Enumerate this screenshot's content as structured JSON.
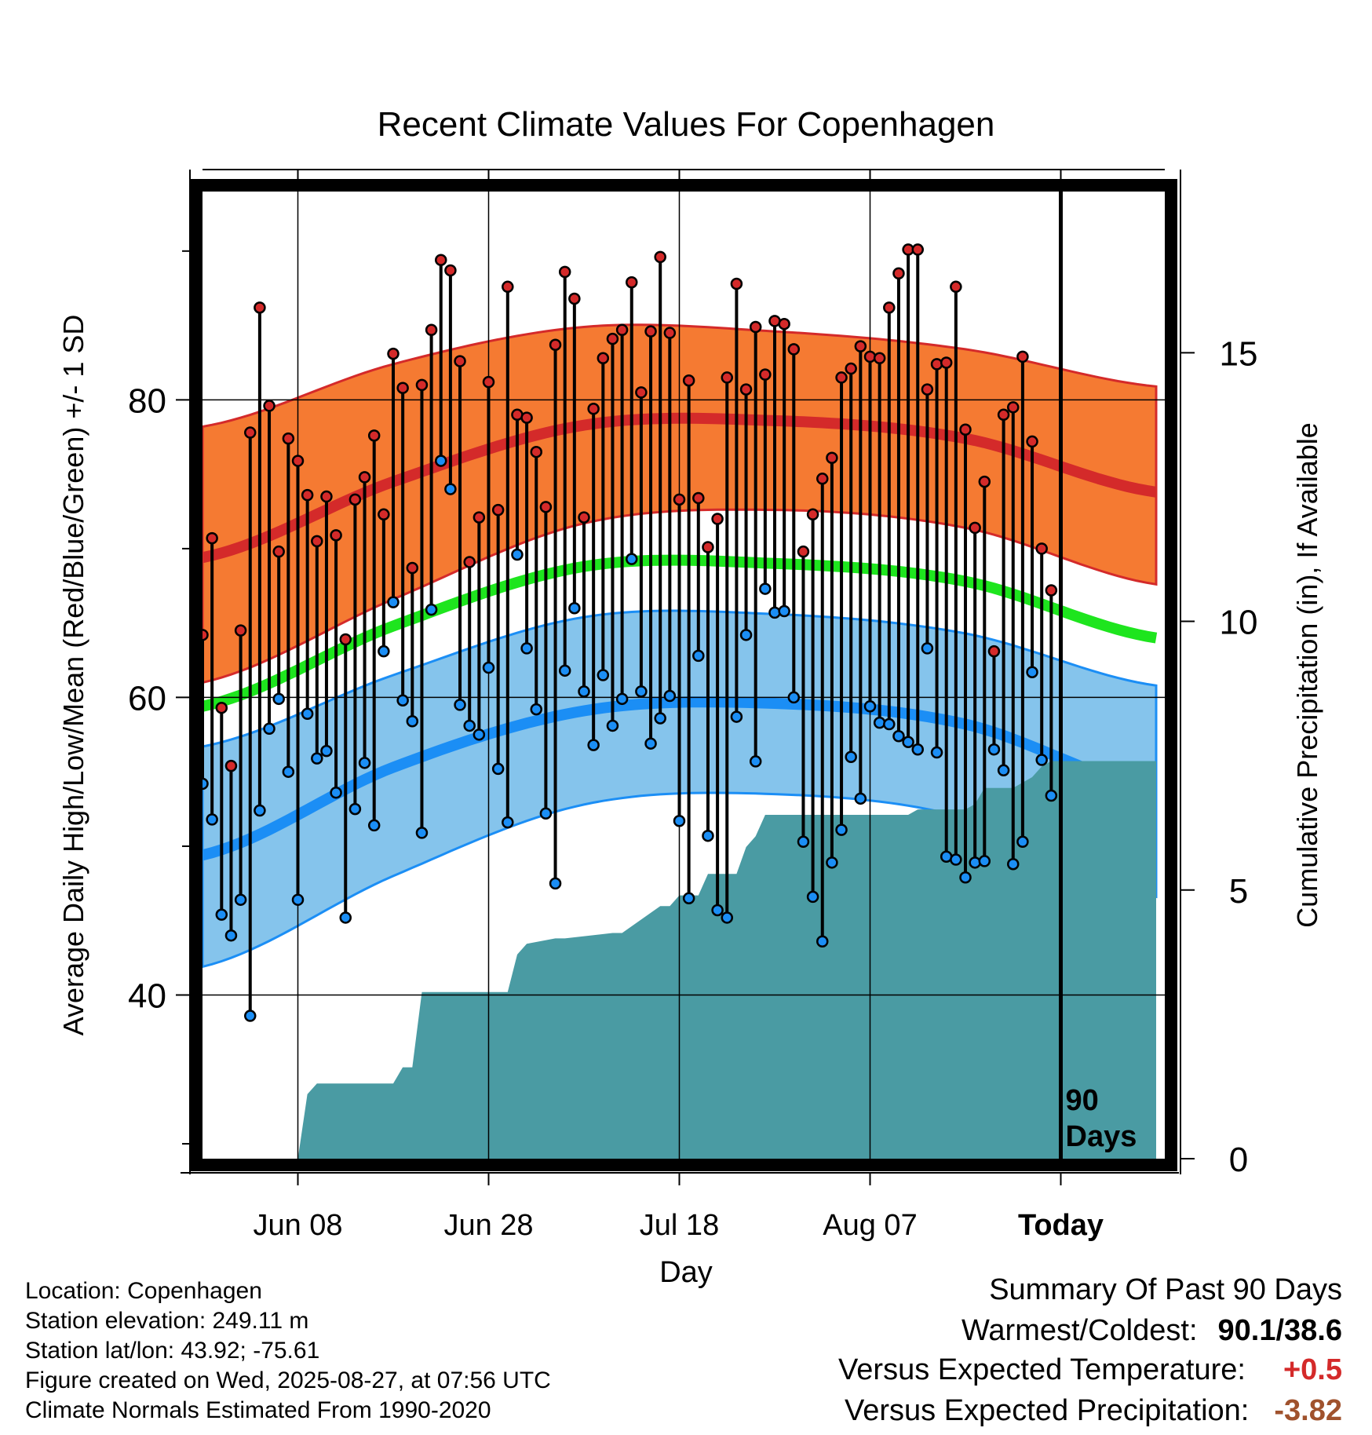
{
  "chart_data": {
    "type": "line",
    "title": "Recent Climate Values For Copenhagen",
    "xlabel": "Day",
    "ylabel": "Average Daily High/Low/Mean (Red/Blue/Green) +/- 1 SD",
    "y2label": "Cumulative Precipitation (in), If Available",
    "x_start": "2025-05-29",
    "today": "2025-08-27",
    "x_end": "2025-09-06",
    "ylim": [
      29,
      94
    ],
    "y_ticks": [
      40,
      60,
      80
    ],
    "y_minor_ticks": [
      30,
      50,
      70,
      90
    ],
    "y2lim": [
      0,
      18
    ],
    "y2_ticks": [
      0,
      5,
      10,
      15
    ],
    "x_ticks": [
      {
        "date": "2025-06-08",
        "label": "Jun 08"
      },
      {
        "date": "2025-06-28",
        "label": "Jun 28"
      },
      {
        "date": "2025-07-18",
        "label": "Jul 18"
      },
      {
        "date": "2025-08-07",
        "label": "Aug 07"
      },
      {
        "date": "2025-08-27",
        "label": "Today"
      }
    ],
    "today_label_1": "90",
    "today_label_2": "Days",
    "grid": true,
    "colors": {
      "high_band": "#f57a32",
      "high_mean": "#d42a2a",
      "low_band": "#85c4ec",
      "low_mean": "#1b8ef5",
      "mean": "#1ee51e",
      "precip": "#4a9ba3",
      "high_point": "#d42a2a",
      "low_point": "#1b8ef5"
    },
    "normals": {
      "x": [
        "2025-05-29",
        "2025-06-18",
        "2025-07-08",
        "2025-07-28",
        "2025-08-17",
        "2025-09-06"
      ],
      "high": [
        69.4,
        74.5,
        78.3,
        78.6,
        77.4,
        73.8
      ],
      "high_upper": [
        78.2,
        82.4,
        84.9,
        84.6,
        83.4,
        80.9
      ],
      "high_lower": [
        61.0,
        66.6,
        71.7,
        72.6,
        71.4,
        67.6
      ],
      "mean": [
        59.4,
        64.8,
        68.8,
        69.0,
        67.8,
        64.0
      ],
      "low": [
        49.4,
        55.3,
        59.1,
        59.6,
        58.2,
        53.8
      ],
      "low_upper": [
        56.7,
        61.5,
        65.4,
        65.6,
        64.3,
        60.8
      ],
      "low_lower": [
        41.9,
        48.0,
        52.8,
        53.5,
        51.9,
        46.6
      ]
    },
    "series": [
      {
        "name": "High",
        "values": [
          64.2,
          70.7,
          59.3,
          55.4,
          64.5,
          77.8,
          86.2,
          79.6,
          69.8,
          77.4,
          75.9,
          73.6,
          70.5,
          73.5,
          70.9,
          63.9,
          73.3,
          74.8,
          77.6,
          72.3,
          83.1,
          80.8,
          68.7,
          81.0,
          84.7,
          89.4,
          88.7,
          82.6,
          69.1,
          72.1,
          81.2,
          72.6,
          87.6,
          79.0,
          78.8,
          76.5,
          72.8,
          83.7,
          88.6,
          86.8,
          72.1,
          79.4,
          82.8,
          84.1,
          84.7,
          87.9,
          80.5,
          84.6,
          89.6,
          84.5,
          73.3,
          81.3,
          73.4,
          70.1,
          72.0,
          81.5,
          87.8,
          80.7,
          84.9,
          81.7,
          85.3,
          85.1,
          83.4,
          69.8,
          72.3,
          74.7,
          76.1,
          81.5,
          82.1,
          83.6,
          82.9,
          82.8,
          86.2,
          88.5,
          90.1,
          90.1,
          80.7,
          82.4,
          82.5,
          87.6,
          78.0,
          71.4,
          74.5,
          63.1,
          79.0,
          79.5,
          82.9,
          77.2,
          70.0,
          67.2
        ]
      },
      {
        "name": "Low",
        "values": [
          54.2,
          51.8,
          45.4,
          44.0,
          46.4,
          38.6,
          52.4,
          57.9,
          59.9,
          55.0,
          46.4,
          58.9,
          55.9,
          56.4,
          53.6,
          45.2,
          52.5,
          55.6,
          51.4,
          63.1,
          66.4,
          59.8,
          58.4,
          50.9,
          65.9,
          75.9,
          74.0,
          59.5,
          58.1,
          57.5,
          62.0,
          55.2,
          51.6,
          69.6,
          63.3,
          59.2,
          52.2,
          47.5,
          61.8,
          66.0,
          60.4,
          56.8,
          61.5,
          58.1,
          59.9,
          69.3,
          60.4,
          56.9,
          58.6,
          60.1,
          51.7,
          46.5,
          62.8,
          50.7,
          45.7,
          45.2,
          58.7,
          64.2,
          55.7,
          67.3,
          65.7,
          65.8,
          60.0,
          50.3,
          46.6,
          43.6,
          48.9,
          51.1,
          56.0,
          53.2,
          59.4,
          58.3,
          58.2,
          57.4,
          57.0,
          56.5,
          63.3,
          56.3,
          49.3,
          49.1,
          47.9,
          48.9,
          49.0,
          56.5,
          55.1,
          48.8,
          50.3,
          61.7,
          55.8,
          53.4
        ]
      },
      {
        "name": "Precipitation",
        "x": [
          "2025-05-29",
          "2025-06-08",
          "2025-06-09",
          "2025-06-10",
          "2025-06-11",
          "2025-06-18",
          "2025-06-19",
          "2025-06-20",
          "2025-06-21",
          "2025-06-30",
          "2025-07-01",
          "2025-07-02",
          "2025-07-05",
          "2025-07-06",
          "2025-07-11",
          "2025-07-12",
          "2025-07-16",
          "2025-07-17",
          "2025-07-18",
          "2025-07-20",
          "2025-07-21",
          "2025-07-24",
          "2025-07-25",
          "2025-07-26",
          "2025-07-27",
          "2025-08-01",
          "2025-08-11",
          "2025-08-12",
          "2025-08-17",
          "2025-08-18",
          "2025-08-19",
          "2025-08-22",
          "2025-08-23",
          "2025-08-24",
          "2025-08-25",
          "2025-08-26",
          "2025-08-27",
          "2025-09-06"
        ],
        "values": [
          0,
          0,
          1.2,
          1.4,
          1.4,
          1.4,
          1.7,
          1.7,
          3.1,
          3.1,
          3.8,
          4.0,
          4.1,
          4.1,
          4.2,
          4.2,
          4.7,
          4.7,
          4.9,
          4.9,
          5.3,
          5.3,
          5.8,
          6.0,
          6.4,
          6.4,
          6.4,
          6.5,
          6.5,
          6.6,
          6.9,
          6.9,
          7.0,
          7.1,
          7.3,
          7.4,
          7.4,
          7.4
        ]
      }
    ]
  },
  "info": {
    "location": "Location: Copenhagen",
    "elevation": "Station elevation: 249.11 m",
    "latlon": "Station lat/lon: 43.92; -75.61",
    "created": "Figure created on Wed, 2025-08-27, at 07:56 UTC",
    "normals": "Climate Normals Estimated From 1990-2020"
  },
  "summary": {
    "heading": "Summary Of Past 90 Days",
    "warmest_label": "Warmest/Coldest:",
    "warmest_value": "90.1/38.6",
    "temp_label": "Versus Expected Temperature:",
    "temp_value": "+0.5",
    "temp_color": "#d42a2a",
    "precip_label": "Versus Expected Precipitation:",
    "precip_value": "-3.82",
    "precip_color": "#a0522d"
  }
}
